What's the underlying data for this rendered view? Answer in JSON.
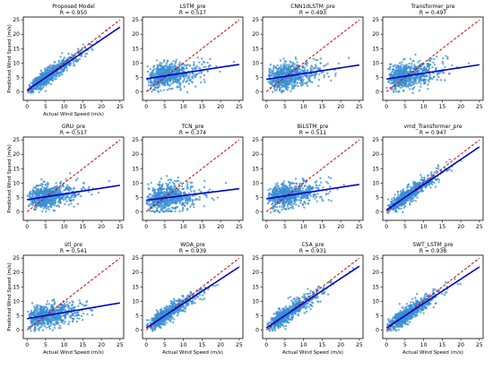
{
  "chart_data": [
    {
      "type": "scatter",
      "title": "Proposed Model",
      "r_label": "R = 0.950",
      "r": 0.95,
      "slope": 0.88,
      "intercept": 0.5,
      "spread": 2.2,
      "xlabel": "Actual Wind Speed (m/s)",
      "ylabel": "Predicted Wind Speed (m/s)",
      "xlim": [
        -1,
        26
      ],
      "ylim": [
        -3,
        26
      ],
      "xticks": [
        0,
        5,
        10,
        15,
        20,
        25
      ],
      "yticks": [
        0,
        5,
        10,
        15,
        20,
        25
      ],
      "identity_line": true,
      "fit_line": true,
      "point_color": "#3a8fd0",
      "fit_color": "#0000cc",
      "identity_color": "#cc0000"
    },
    {
      "type": "scatter",
      "title": "LSTM_pre",
      "r_label": "R = 0.517",
      "r": 0.517,
      "slope": 0.2,
      "intercept": 4.5,
      "spread": 3.6,
      "xlabel": "",
      "ylabel": "",
      "xlim": [
        -1,
        26
      ],
      "ylim": [
        -3,
        26
      ],
      "xticks": [
        0,
        5,
        10,
        15,
        20,
        25
      ],
      "yticks": [
        0,
        5,
        10,
        15,
        20,
        25
      ],
      "identity_line": true,
      "fit_line": true,
      "point_color": "#3a8fd0",
      "fit_color": "#0000cc",
      "identity_color": "#cc0000"
    },
    {
      "type": "scatter",
      "title": "CNN1dLSTM_pre",
      "r_label": "R = 0.493",
      "r": 0.493,
      "slope": 0.2,
      "intercept": 4.3,
      "spread": 3.6,
      "xlabel": "",
      "ylabel": "",
      "xlim": [
        -1,
        26
      ],
      "ylim": [
        -3,
        26
      ],
      "xticks": [
        0,
        5,
        10,
        15,
        20,
        25
      ],
      "yticks": [
        0,
        5,
        10,
        15,
        20,
        25
      ],
      "identity_line": true,
      "fit_line": true,
      "point_color": "#3a8fd0",
      "fit_color": "#0000cc",
      "identity_color": "#cc0000"
    },
    {
      "type": "scatter",
      "title": "Transformer_pre",
      "r_label": "R = 0.497",
      "r": 0.497,
      "slope": 0.2,
      "intercept": 4.4,
      "spread": 3.6,
      "xlabel": "",
      "ylabel": "",
      "xlim": [
        -1,
        26
      ],
      "ylim": [
        -3,
        26
      ],
      "xticks": [
        0,
        5,
        10,
        15,
        20,
        25
      ],
      "yticks": [
        0,
        5,
        10,
        15,
        20,
        25
      ],
      "identity_line": true,
      "fit_line": true,
      "point_color": "#3a8fd0",
      "fit_color": "#0000cc",
      "identity_color": "#cc0000"
    },
    {
      "type": "scatter",
      "title": "GRU_pre",
      "r_label": "R = 0.517",
      "r": 0.517,
      "slope": 0.2,
      "intercept": 4.2,
      "spread": 3.4,
      "xlabel": "",
      "ylabel": "Predicted Wind Speed (m/s)",
      "xlim": [
        -1,
        26
      ],
      "ylim": [
        -3,
        26
      ],
      "xticks": [
        0,
        5,
        10,
        15,
        20,
        25
      ],
      "yticks": [
        0,
        5,
        10,
        15,
        20,
        25
      ],
      "identity_line": true,
      "fit_line": true,
      "point_color": "#3a8fd0",
      "fit_color": "#0000cc",
      "identity_color": "#cc0000"
    },
    {
      "type": "scatter",
      "title": "TCN_pre",
      "r_label": "R = 0.374",
      "r": 0.374,
      "slope": 0.16,
      "intercept": 4.0,
      "spread": 3.8,
      "xlabel": "",
      "ylabel": "",
      "xlim": [
        -1,
        26
      ],
      "ylim": [
        -3,
        26
      ],
      "xticks": [
        0,
        5,
        10,
        15,
        20,
        25
      ],
      "yticks": [
        0,
        5,
        10,
        15,
        20,
        25
      ],
      "identity_line": true,
      "fit_line": true,
      "point_color": "#3a8fd0",
      "fit_color": "#0000cc",
      "identity_color": "#cc0000"
    },
    {
      "type": "scatter",
      "title": "BiLSTM_pre",
      "r_label": "R = 0.511",
      "r": 0.511,
      "slope": 0.2,
      "intercept": 4.5,
      "spread": 3.6,
      "xlabel": "",
      "ylabel": "",
      "xlim": [
        -1,
        26
      ],
      "ylim": [
        -3,
        26
      ],
      "xticks": [
        0,
        5,
        10,
        15,
        20,
        25
      ],
      "yticks": [
        0,
        5,
        10,
        15,
        20,
        25
      ],
      "identity_line": true,
      "fit_line": true,
      "point_color": "#3a8fd0",
      "fit_color": "#0000cc",
      "identity_color": "#cc0000"
    },
    {
      "type": "scatter",
      "title": "vmd_Transformer_pre",
      "r_label": "R = 0.947",
      "r": 0.947,
      "slope": 0.88,
      "intercept": 0.6,
      "spread": 2.2,
      "xlabel": "",
      "ylabel": "",
      "xlim": [
        -1,
        26
      ],
      "ylim": [
        -3,
        26
      ],
      "xticks": [
        0,
        5,
        10,
        15,
        20,
        25
      ],
      "yticks": [
        0,
        5,
        10,
        15,
        20,
        25
      ],
      "identity_line": true,
      "fit_line": true,
      "point_color": "#3a8fd0",
      "fit_color": "#0000cc",
      "identity_color": "#cc0000"
    },
    {
      "type": "scatter",
      "title": "stl_pre",
      "r_label": "R = 0.541",
      "r": 0.541,
      "slope": 0.22,
      "intercept": 3.9,
      "spread": 3.2,
      "xlabel": "Actual Wind Speed (m/s)",
      "ylabel": "Predicted Wind Speed (m/s)",
      "xlim": [
        -1,
        26
      ],
      "ylim": [
        -3,
        26
      ],
      "xticks": [
        0,
        5,
        10,
        15,
        20,
        25
      ],
      "yticks": [
        0,
        5,
        10,
        15,
        20,
        25
      ],
      "identity_line": true,
      "fit_line": true,
      "point_color": "#3a8fd0",
      "fit_color": "#0000cc",
      "identity_color": "#cc0000"
    },
    {
      "type": "scatter",
      "title": "WOA_pre",
      "r_label": "R = 0.939",
      "r": 0.939,
      "slope": 0.85,
      "intercept": 0.7,
      "spread": 2.3,
      "xlabel": "Actual Wind Speed (m/s)",
      "ylabel": "",
      "xlim": [
        -1,
        26
      ],
      "ylim": [
        -3,
        26
      ],
      "xticks": [
        0,
        5,
        10,
        15,
        20,
        25
      ],
      "yticks": [
        0,
        5,
        10,
        15,
        20,
        25
      ],
      "identity_line": true,
      "fit_line": true,
      "point_color": "#3a8fd0",
      "fit_color": "#0000cc",
      "identity_color": "#cc0000"
    },
    {
      "type": "scatter",
      "title": "CSA_pre",
      "r_label": "R = 0.931",
      "r": 0.931,
      "slope": 0.86,
      "intercept": 0.7,
      "spread": 2.4,
      "xlabel": "Actual Wind Speed (m/s)",
      "ylabel": "",
      "xlim": [
        -1,
        26
      ],
      "ylim": [
        -3,
        26
      ],
      "xticks": [
        0,
        5,
        10,
        15,
        20,
        25
      ],
      "yticks": [
        0,
        5,
        10,
        15,
        20,
        25
      ],
      "identity_line": true,
      "fit_line": true,
      "point_color": "#3a8fd0",
      "fit_color": "#0000cc",
      "identity_color": "#cc0000"
    },
    {
      "type": "scatter",
      "title": "SWT_LSTM_pre",
      "r_label": "R = 0.938",
      "r": 0.938,
      "slope": 0.85,
      "intercept": 0.7,
      "spread": 2.3,
      "xlabel": "Actual Wind Speed (m/s)",
      "ylabel": "",
      "xlim": [
        -1,
        26
      ],
      "ylim": [
        -3,
        26
      ],
      "xticks": [
        0,
        5,
        10,
        15,
        20,
        25
      ],
      "yticks": [
        0,
        5,
        10,
        15,
        20,
        25
      ],
      "identity_line": true,
      "fit_line": true,
      "point_color": "#3a8fd0",
      "fit_color": "#0000cc",
      "identity_color": "#cc0000"
    }
  ]
}
